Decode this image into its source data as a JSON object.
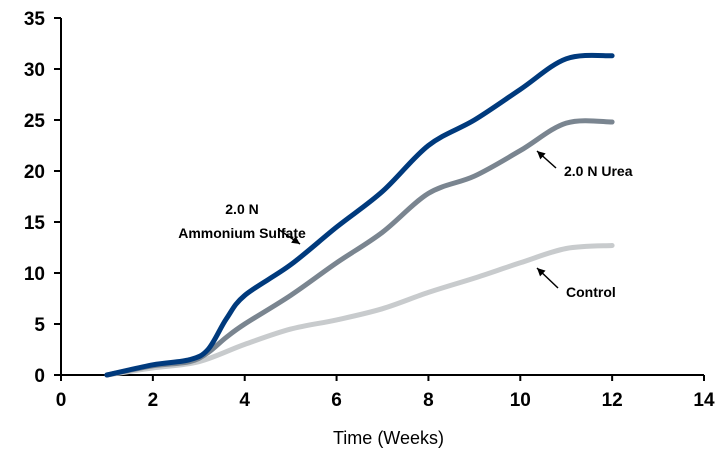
{
  "chart_data": {
    "type": "line",
    "title": "",
    "xlabel": "Time (Weeks)",
    "ylabel": "",
    "xlim": [
      0,
      14
    ],
    "ylim": [
      0,
      35
    ],
    "xticks": [
      0,
      2,
      4,
      6,
      8,
      10,
      12,
      14
    ],
    "yticks": [
      0,
      5,
      10,
      15,
      20,
      25,
      30,
      35
    ],
    "grid": false,
    "series": [
      {
        "key": "ammonium",
        "color": "#003a7d",
        "x": [
          1,
          2,
          2.8,
          3.2,
          3.6,
          4,
          5,
          6,
          7,
          8,
          9,
          10,
          11,
          12
        ],
        "y": [
          0,
          1,
          1.5,
          2.5,
          5.5,
          7.8,
          10.8,
          14.5,
          18,
          22.5,
          25,
          28,
          31,
          31.3
        ]
      },
      {
        "key": "urea",
        "color": "#7a8590",
        "x": [
          1,
          2,
          2.8,
          3.2,
          3.6,
          4,
          5,
          6,
          7,
          8,
          9,
          10,
          11,
          12
        ],
        "y": [
          0,
          0.9,
          1.3,
          2.2,
          3.7,
          5,
          7.8,
          11,
          14,
          17.8,
          19.5,
          22,
          24.7,
          24.8
        ]
      },
      {
        "key": "control",
        "color": "#c8cbcd",
        "x": [
          1,
          2,
          3,
          4,
          5,
          6,
          7,
          8,
          9,
          10,
          11,
          12
        ],
        "y": [
          0,
          0.7,
          1.3,
          3,
          4.5,
          5.4,
          6.5,
          8.1,
          9.5,
          11,
          12.4,
          12.7
        ]
      }
    ],
    "annotations": [
      {
        "key": "ammonium",
        "lines": [
          "2.0 N",
          "Ammonium Sulfate"
        ]
      },
      {
        "key": "urea",
        "lines": [
          "2.0 N Urea"
        ]
      },
      {
        "key": "control",
        "lines": [
          "Control"
        ]
      }
    ]
  }
}
